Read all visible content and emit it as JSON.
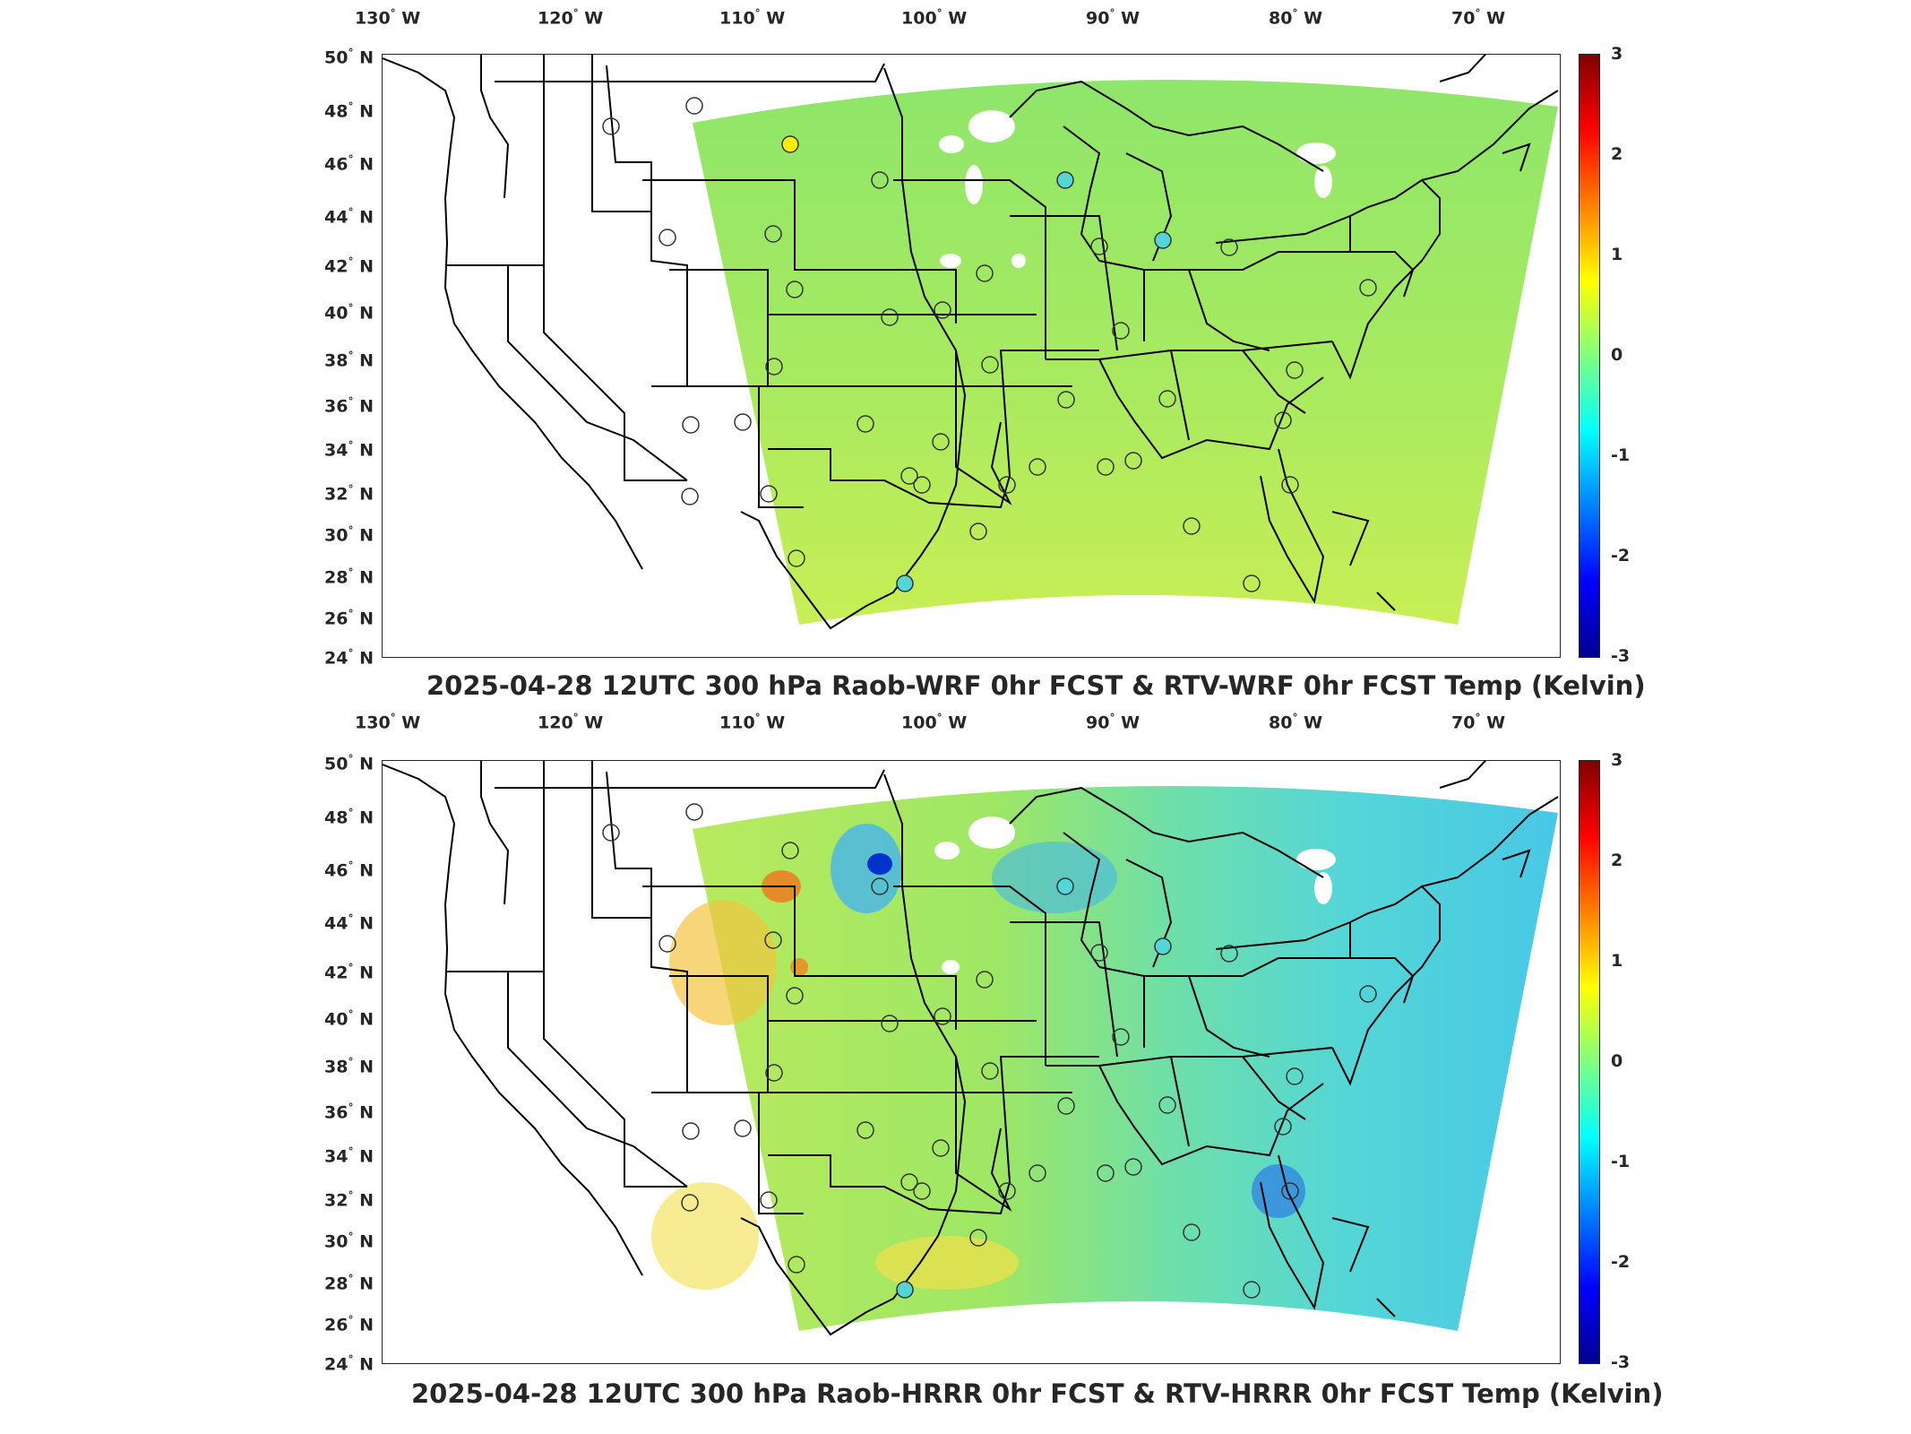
{
  "lon_ticks": [
    "130",
    "120",
    "110",
    "100",
    "90",
    "80",
    "70"
  ],
  "lon_suffix": "W",
  "lat_ticks": [
    "50",
    "48",
    "46",
    "44",
    "42",
    "40",
    "38",
    "36",
    "34",
    "32",
    "30",
    "28",
    "26",
    "24"
  ],
  "lat_suffix": "N",
  "degree_symbol": "°",
  "colorbar_ticks": [
    "3",
    "2",
    "1",
    "0",
    "-1",
    "-2",
    "-3"
  ],
  "colormap": {
    "low": "#00008f",
    "mid": "#80ff80",
    "high": "#800000",
    "field_top": "#8ee66a",
    "field_bottom_warm": "#c8ee55",
    "field_bottom_cool": "#55d6d6"
  },
  "panels": [
    {
      "title": "2025-04-28 12UTC 300 hPa Raob-WRF 0hr FCST & RTV-WRF 0hr FCST Temp (Kelvin)"
    },
    {
      "title": "2025-04-28 12UTC 300 hPa Raob-HRRR 0hr FCST & RTV-HRRR 0hr FCST Temp (Kelvin)"
    }
  ]
}
